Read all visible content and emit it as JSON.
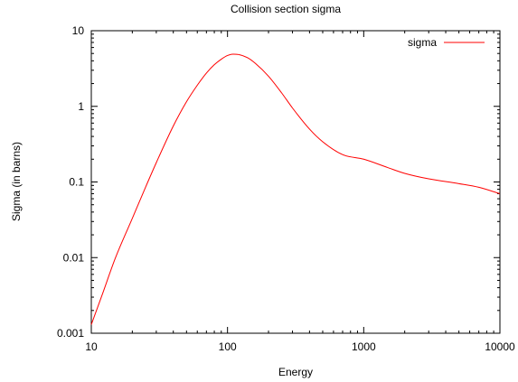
{
  "chart_data": {
    "type": "line",
    "title": "Collision section sigma",
    "xlabel": "Energy",
    "ylabel": "Sigma (in barns)",
    "x_scale": "log",
    "y_scale": "log",
    "xlim": [
      10,
      10000
    ],
    "ylim": [
      0.001,
      10
    ],
    "x_ticks": [
      10,
      100,
      1000,
      10000
    ],
    "x_tick_labels": [
      "10",
      "100",
      "1000",
      "10000"
    ],
    "y_ticks": [
      0.001,
      0.01,
      0.1,
      1,
      10
    ],
    "y_tick_labels": [
      "0.001",
      "0.01",
      "0.1",
      "1",
      "10"
    ],
    "grid": false,
    "legend_position": "top-right",
    "series": [
      {
        "name": "sigma",
        "color": "#ff0000",
        "x": [
          10,
          12,
          15,
          20,
          25,
          30,
          40,
          50,
          60,
          70,
          80,
          90,
          100,
          110,
          120,
          140,
          160,
          200,
          250,
          300,
          400,
          500,
          700,
          1000,
          1500,
          2000,
          3000,
          5000,
          7000,
          10000
        ],
        "y": [
          0.0013,
          0.0032,
          0.0098,
          0.033,
          0.085,
          0.18,
          0.55,
          1.15,
          1.9,
          2.75,
          3.55,
          4.2,
          4.7,
          4.9,
          4.85,
          4.4,
          3.7,
          2.5,
          1.5,
          0.95,
          0.5,
          0.34,
          0.23,
          0.2,
          0.155,
          0.13,
          0.11,
          0.095,
          0.085,
          0.07
        ]
      }
    ]
  }
}
